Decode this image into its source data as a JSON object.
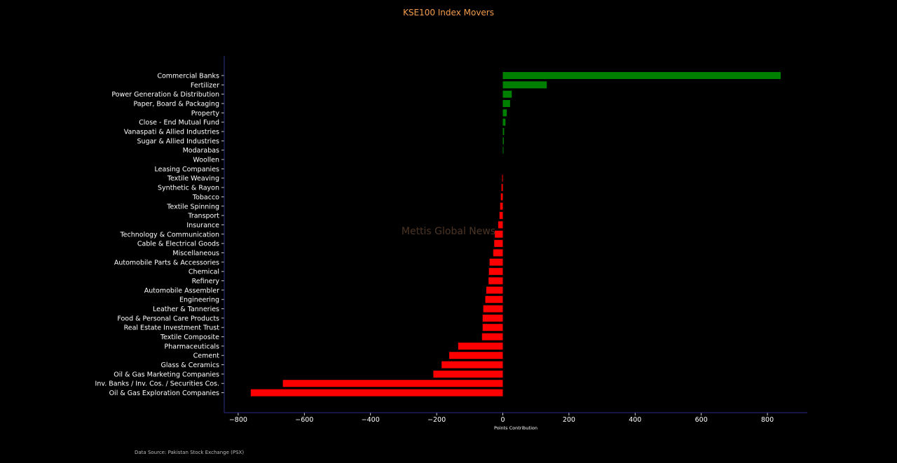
{
  "chart_data": {
    "type": "bar",
    "orientation": "horizontal",
    "title": "KSE100 Index Movers",
    "xlabel": "Points Contribution",
    "ylabel": "",
    "xlim": [
      -840,
      920
    ],
    "xticks": [
      -800,
      -600,
      -400,
      -200,
      0,
      200,
      400,
      600,
      800
    ],
    "xtick_labels": [
      "−800",
      "−600",
      "−400",
      "−200",
      "0",
      "200",
      "400",
      "600",
      "800"
    ],
    "categories": [
      "Commercial Banks",
      "Fertilizer",
      "Power Generation & Distribution",
      "Paper, Board & Packaging",
      "Property",
      "Close - End Mutual Fund",
      "Vanaspati & Allied Industries",
      "Sugar & Allied Industries",
      "Modarabas",
      "Woollen",
      "Leasing Companies",
      "Textile Weaving",
      "Synthetic & Rayon",
      "Tobacco",
      "Textile Spinning",
      "Transport",
      "Insurance",
      "Technology & Communication",
      "Cable & Electrical Goods",
      "Miscellaneous",
      "Automobile Parts & Accessories",
      "Chemical",
      "Refinery",
      "Automobile Assembler",
      "Engineering",
      "Leather & Tanneries",
      "Food & Personal Care Products",
      "Real Estate Investment Trust",
      "Textile Composite",
      "Pharmaceuticals",
      "Cement",
      "Glass & Ceramics",
      "Oil & Gas Marketing Companies",
      "Inv. Banks / Inv. Cos. / Securities Cos.",
      "Oil & Gas Exploration Companies"
    ],
    "values": [
      840,
      133,
      27,
      22,
      12,
      8,
      4,
      3,
      2,
      0,
      0,
      -2,
      -4,
      -6,
      -8,
      -10,
      -14,
      -24,
      -26,
      -29,
      -40,
      -42,
      -43,
      -50,
      -53,
      -59,
      -61,
      -61,
      -63,
      -135,
      -162,
      -185,
      -210,
      -665,
      -762
    ],
    "colors": {
      "positive": "#008000",
      "negative": "#ff0000"
    },
    "grid": false,
    "legend": "none",
    "watermark": "Mettis Global News",
    "source_note": "Data Source: Pakistan Stock Exchange (PSX)"
  }
}
